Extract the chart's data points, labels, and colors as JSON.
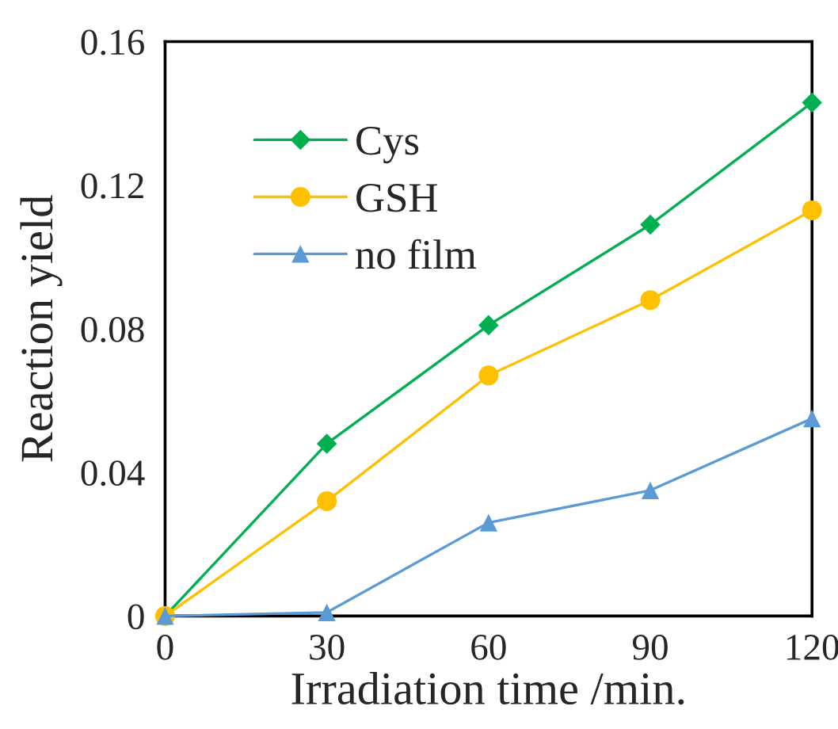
{
  "chart_data": {
    "type": "line",
    "xlabel": "Irradiation time /min.",
    "ylabel": "Reaction yield",
    "x": [
      0,
      30,
      60,
      90,
      120
    ],
    "series": [
      {
        "name": "Cys",
        "color": "#00b050",
        "marker": "diamond",
        "values": [
          0,
          0.048,
          0.081,
          0.109,
          0.143
        ]
      },
      {
        "name": "GSH",
        "color": "#ffc000",
        "marker": "circle",
        "values": [
          0,
          0.032,
          0.067,
          0.088,
          0.113
        ]
      },
      {
        "name": "no film",
        "color": "#5b9bd5",
        "marker": "triangle",
        "values": [
          0,
          0.001,
          0.026,
          0.035,
          0.055
        ]
      }
    ],
    "xlim": [
      0,
      120
    ],
    "xticks": [
      0,
      30,
      60,
      90,
      120
    ],
    "ylim": [
      0,
      0.16
    ],
    "yticks": [
      0,
      0.04,
      0.08,
      0.12,
      0.16
    ],
    "grid": false,
    "legend": "top left",
    "line_style": "solid"
  }
}
